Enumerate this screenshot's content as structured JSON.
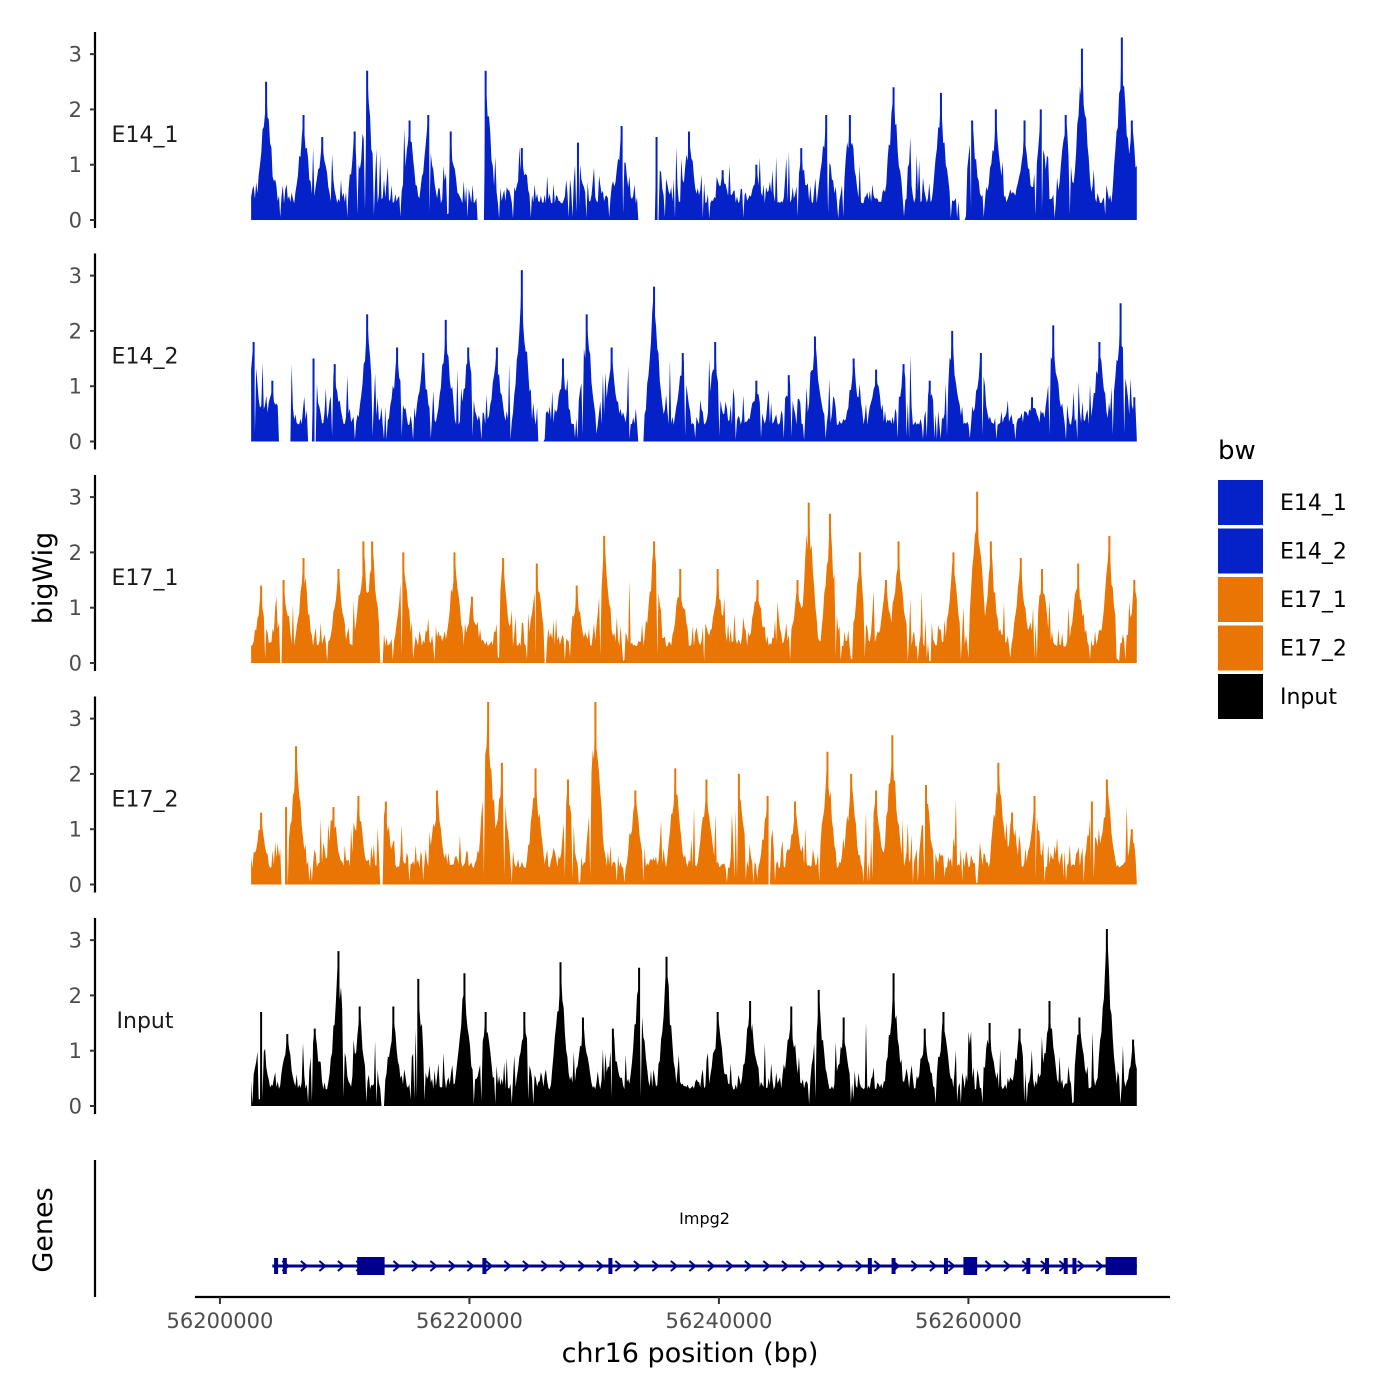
{
  "chart_data": {
    "type": "area",
    "xlabel": "chr16 position (bp)",
    "ylabel_tracks": "bigWig",
    "ylabel_genes": "Genes",
    "xlim": [
      56198000,
      56276000
    ],
    "x_ticks": [
      56200000,
      56220000,
      56240000,
      56260000
    ],
    "x_tick_labels": [
      "56200000",
      "56220000",
      "56240000",
      "56260000"
    ],
    "region": [
      56202500,
      56273500
    ],
    "ylim": [
      0,
      3.4
    ],
    "y_ticks": [
      0,
      1,
      2,
      3
    ],
    "y_tick_labels": [
      "0",
      "1",
      "2",
      "3"
    ],
    "grid": false,
    "legend": {
      "title": "bw",
      "placement": "right",
      "entries": [
        {
          "label": "E14_1",
          "color": "#0422C8"
        },
        {
          "label": "E14_2",
          "color": "#0422C8"
        },
        {
          "label": "E17_1",
          "color": "#E87504"
        },
        {
          "label": "E17_2",
          "color": "#E87504"
        },
        {
          "label": "Input",
          "color": "#000000"
        }
      ]
    },
    "series": [
      {
        "name": "E14_1",
        "color": "#0422C8",
        "peaks": [
          [
            56203700,
            2.5
          ],
          [
            56206700,
            1.9
          ],
          [
            56208200,
            1.5
          ],
          [
            56210800,
            1.6
          ],
          [
            56211800,
            2.7
          ],
          [
            56215200,
            1.8
          ],
          [
            56216700,
            1.9
          ],
          [
            56218500,
            1.6
          ],
          [
            56221300,
            2.7
          ],
          [
            56224200,
            1.3
          ],
          [
            56228700,
            1.4
          ],
          [
            56232200,
            1.7
          ],
          [
            56235000,
            1.5
          ],
          [
            56237600,
            1.6
          ],
          [
            56240300,
            0.9
          ],
          [
            56243000,
            1.0
          ],
          [
            56246600,
            1.3
          ],
          [
            56248600,
            1.9
          ],
          [
            56250500,
            1.9
          ],
          [
            56254000,
            2.4
          ],
          [
            56257800,
            2.3
          ],
          [
            56260300,
            1.8
          ],
          [
            56262200,
            2.0
          ],
          [
            56264500,
            1.8
          ],
          [
            56265800,
            2.0
          ],
          [
            56267800,
            1.9
          ],
          [
            56269100,
            3.1
          ],
          [
            56272300,
            3.3
          ],
          [
            56273100,
            1.8
          ]
        ],
        "gaps": [
          [
            56220600,
            56221200
          ],
          [
            56233500,
            56235200
          ],
          [
            56259200,
            56259800
          ]
        ]
      },
      {
        "name": "E14_2",
        "color": "#0422C8",
        "peaks": [
          [
            56202700,
            1.8
          ],
          [
            56204200,
            1.1
          ],
          [
            56207500,
            1.5
          ],
          [
            56209200,
            1.4
          ],
          [
            56211800,
            2.3
          ],
          [
            56214200,
            1.7
          ],
          [
            56216300,
            1.6
          ],
          [
            56218100,
            2.2
          ],
          [
            56219900,
            1.7
          ],
          [
            56222200,
            1.7
          ],
          [
            56224200,
            3.1
          ],
          [
            56227500,
            1.5
          ],
          [
            56229400,
            2.3
          ],
          [
            56231400,
            1.7
          ],
          [
            56234800,
            2.8
          ],
          [
            56237100,
            1.6
          ],
          [
            56239700,
            1.8
          ],
          [
            56243000,
            1.1
          ],
          [
            56245600,
            1.2
          ],
          [
            56247700,
            1.9
          ],
          [
            56250800,
            1.5
          ],
          [
            56252600,
            1.3
          ],
          [
            56254800,
            1.4
          ],
          [
            56256900,
            1.1
          ],
          [
            56258700,
            2.0
          ],
          [
            56261000,
            1.6
          ],
          [
            56265100,
            0.8
          ],
          [
            56266800,
            2.1
          ],
          [
            56270500,
            1.8
          ],
          [
            56272200,
            2.5
          ],
          [
            56273300,
            0.8
          ]
        ],
        "gaps": [
          [
            56204700,
            56205700
          ],
          [
            56207000,
            56207700
          ],
          [
            56225500,
            56226000
          ],
          [
            56233500,
            56234000
          ]
        ]
      },
      {
        "name": "E17_1",
        "color": "#E87504",
        "peaks": [
          [
            56203300,
            1.4
          ],
          [
            56205100,
            1.5
          ],
          [
            56206700,
            1.9
          ],
          [
            56209500,
            1.7
          ],
          [
            56211500,
            2.2
          ],
          [
            56212200,
            2.2
          ],
          [
            56214700,
            2.0
          ],
          [
            56218800,
            2.0
          ],
          [
            56220200,
            1.2
          ],
          [
            56222700,
            1.9
          ],
          [
            56225400,
            1.8
          ],
          [
            56228600,
            1.4
          ],
          [
            56230800,
            2.3
          ],
          [
            56234800,
            2.2
          ],
          [
            56236900,
            1.7
          ],
          [
            56239900,
            1.7
          ],
          [
            56243100,
            1.5
          ],
          [
            56246300,
            1.5
          ],
          [
            56247200,
            2.9
          ],
          [
            56248900,
            2.7
          ],
          [
            56251300,
            2.0
          ],
          [
            56253400,
            1.5
          ],
          [
            56254400,
            2.2
          ],
          [
            56258800,
            2.0
          ],
          [
            56260700,
            3.1
          ],
          [
            56261800,
            2.2
          ],
          [
            56264200,
            1.9
          ],
          [
            56265900,
            1.7
          ],
          [
            56268800,
            1.8
          ],
          [
            56271300,
            2.3
          ],
          [
            56273300,
            1.5
          ]
        ],
        "gaps": [
          [
            56204800,
            56205000
          ],
          [
            56212800,
            56213100
          ],
          [
            56226000,
            56226200
          ]
        ]
      },
      {
        "name": "E17_2",
        "color": "#E87504",
        "peaks": [
          [
            56203300,
            1.3
          ],
          [
            56205300,
            1.4
          ],
          [
            56206100,
            2.5
          ],
          [
            56209100,
            1.4
          ],
          [
            56211100,
            1.6
          ],
          [
            56213300,
            1.5
          ],
          [
            56217400,
            1.7
          ],
          [
            56221500,
            3.3
          ],
          [
            56222600,
            2.2
          ],
          [
            56225300,
            2.1
          ],
          [
            56227900,
            1.9
          ],
          [
            56230100,
            3.3
          ],
          [
            56233300,
            1.7
          ],
          [
            56236500,
            2.1
          ],
          [
            56239000,
            1.9
          ],
          [
            56241600,
            2.0
          ],
          [
            56243900,
            1.6
          ],
          [
            56246100,
            1.5
          ],
          [
            56248700,
            2.4
          ],
          [
            56250600,
            2.0
          ],
          [
            56252600,
            1.7
          ],
          [
            56253900,
            2.7
          ],
          [
            56256600,
            1.8
          ],
          [
            56262400,
            2.2
          ],
          [
            56263500,
            1.3
          ],
          [
            56265300,
            1.6
          ],
          [
            56269900,
            1.5
          ],
          [
            56271100,
            1.9
          ],
          [
            56273100,
            1.0
          ]
        ],
        "gaps": [
          [
            56204900,
            56205500
          ],
          [
            56212800,
            56213100
          ],
          [
            56243800,
            56244100
          ]
        ]
      },
      {
        "name": "Input",
        "color": "#000000",
        "peaks": [
          [
            56203300,
            1.7
          ],
          [
            56205400,
            1.3
          ],
          [
            56207600,
            1.4
          ],
          [
            56209500,
            2.8
          ],
          [
            56211200,
            1.8
          ],
          [
            56213900,
            1.8
          ],
          [
            56215900,
            2.3
          ],
          [
            56219600,
            2.4
          ],
          [
            56221300,
            1.7
          ],
          [
            56224400,
            1.7
          ],
          [
            56227300,
            2.6
          ],
          [
            56229100,
            1.6
          ],
          [
            56231500,
            1.4
          ],
          [
            56233600,
            2.5
          ],
          [
            56235800,
            2.7
          ],
          [
            56239900,
            1.7
          ],
          [
            56242500,
            1.9
          ],
          [
            56245800,
            1.8
          ],
          [
            56248000,
            2.1
          ],
          [
            56250000,
            1.6
          ],
          [
            56254000,
            2.4
          ],
          [
            56256500,
            1.4
          ],
          [
            56258000,
            1.7
          ],
          [
            56261700,
            1.5
          ],
          [
            56264100,
            1.4
          ],
          [
            56266500,
            1.9
          ],
          [
            56268900,
            1.6
          ],
          [
            56271100,
            3.2
          ],
          [
            56273200,
            1.2
          ]
        ],
        "gaps": [
          [
            56212900,
            56213200
          ]
        ]
      }
    ],
    "gene": {
      "name": "Impg2",
      "color": "#00008B",
      "start": 56204200,
      "end": 56273500,
      "exons": [
        [
          56211000,
          56213200
        ],
        [
          56259600,
          56260700
        ],
        [
          56271000,
          56273500
        ]
      ],
      "marks": [
        56204500,
        56205200,
        56221200,
        56231300,
        56252100,
        56254000,
        56258200,
        56264800,
        56266300,
        56267800,
        56268500
      ]
    }
  }
}
